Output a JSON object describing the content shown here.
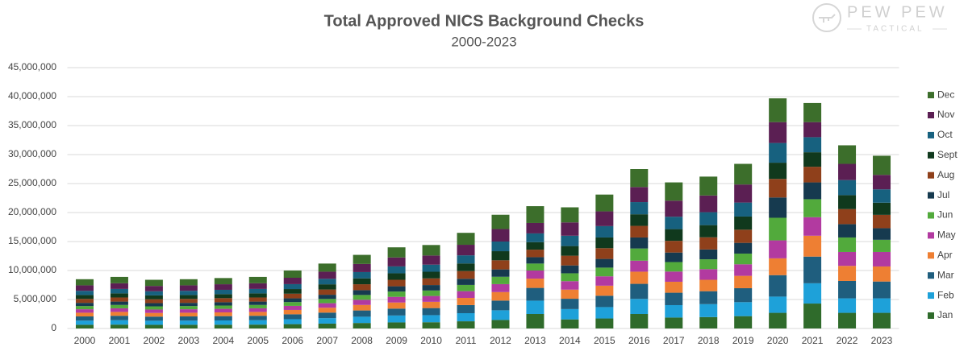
{
  "chart_data": {
    "type": "stacked_bar",
    "title": "Total Approved NICS Background Checks",
    "subtitle": "2000-2023",
    "categories": [
      "2000",
      "2001",
      "2002",
      "2003",
      "2004",
      "2005",
      "2006",
      "2007",
      "2008",
      "2009",
      "2010",
      "2011",
      "2012",
      "2013",
      "2014",
      "2015",
      "2016",
      "2017",
      "2018",
      "2019",
      "2020",
      "2021",
      "2022",
      "2023"
    ],
    "series": [
      {
        "name": "Jan",
        "color": "#2f6b2b",
        "values": [
          640000,
          670000,
          630000,
          640000,
          650000,
          670000,
          750000,
          840000,
          950000,
          1050000,
          1080000,
          1240000,
          1470000,
          2500000,
          1570000,
          1730000,
          2500000,
          1890000,
          1970000,
          2130000,
          2700000,
          4300000,
          2700000,
          2700000
        ]
      },
      {
        "name": "Feb",
        "color": "#1ea1d9",
        "values": [
          720000,
          760000,
          710000,
          720000,
          740000,
          760000,
          850000,
          950000,
          1080000,
          1190000,
          1220000,
          1400000,
          1670000,
          2300000,
          1780000,
          1960000,
          2600000,
          2140000,
          2230000,
          2410000,
          2800000,
          3500000,
          2500000,
          2500000
        ]
      },
      {
        "name": "Mar",
        "color": "#1f5e7e",
        "values": [
          720000,
          760000,
          710000,
          720000,
          740000,
          760000,
          850000,
          950000,
          1080000,
          1190000,
          1220000,
          1400000,
          1670000,
          2200000,
          1780000,
          1960000,
          2600000,
          2140000,
          2230000,
          2410000,
          3700000,
          4600000,
          3000000,
          2900000
        ]
      },
      {
        "name": "Apr",
        "color": "#ee7f33",
        "values": [
          640000,
          670000,
          630000,
          640000,
          650000,
          670000,
          750000,
          840000,
          950000,
          1050000,
          1080000,
          1240000,
          1470000,
          1600000,
          1570000,
          1730000,
          2100000,
          1890000,
          1970000,
          2130000,
          2900000,
          3600000,
          2600000,
          2600000
        ]
      },
      {
        "name": "May",
        "color": "#b23aa0",
        "values": [
          600000,
          620000,
          590000,
          600000,
          610000,
          620000,
          700000,
          780000,
          890000,
          980000,
          1010000,
          1160000,
          1370000,
          1400000,
          1460000,
          1620000,
          1900000,
          1760000,
          1830000,
          1990000,
          3100000,
          3200000,
          2400000,
          2500000
        ]
      },
      {
        "name": "Jun",
        "color": "#52aa3c",
        "values": [
          550000,
          580000,
          550000,
          550000,
          570000,
          580000,
          650000,
          730000,
          830000,
          910000,
          940000,
          1070000,
          1270000,
          1200000,
          1360000,
          1500000,
          2100000,
          1640000,
          1700000,
          1850000,
          3900000,
          3100000,
          2500000,
          2100000
        ]
      },
      {
        "name": "Jul",
        "color": "#163a4f",
        "values": [
          550000,
          580000,
          550000,
          550000,
          570000,
          580000,
          650000,
          730000,
          830000,
          910000,
          940000,
          1070000,
          1270000,
          1100000,
          1360000,
          1500000,
          1900000,
          1640000,
          1700000,
          1850000,
          3500000,
          2900000,
          2300000,
          2000000
        ]
      },
      {
        "name": "Aug",
        "color": "#8f401b",
        "values": [
          680000,
          710000,
          670000,
          680000,
          700000,
          710000,
          800000,
          900000,
          1020000,
          1120000,
          1150000,
          1320000,
          1570000,
          1300000,
          1670000,
          1850000,
          2000000,
          2020000,
          2100000,
          2270000,
          3200000,
          2700000,
          2600000,
          2300000
        ]
      },
      {
        "name": "Sept",
        "color": "#10391d",
        "values": [
          680000,
          710000,
          670000,
          680000,
          700000,
          710000,
          800000,
          900000,
          1020000,
          1120000,
          1150000,
          1320000,
          1570000,
          1300000,
          1670000,
          1850000,
          2000000,
          2020000,
          2100000,
          2270000,
          2800000,
          2500000,
          2400000,
          2100000
        ]
      },
      {
        "name": "Oct",
        "color": "#17617f",
        "values": [
          720000,
          760000,
          710000,
          720000,
          740000,
          760000,
          850000,
          950000,
          1080000,
          1190000,
          1220000,
          1400000,
          1670000,
          1500000,
          1780000,
          1960000,
          2100000,
          2140000,
          2230000,
          2410000,
          3400000,
          2600000,
          2600000,
          2300000
        ]
      },
      {
        "name": "Nov",
        "color": "#5b1f53",
        "values": [
          940000,
          980000,
          920000,
          940000,
          960000,
          980000,
          1100000,
          1230000,
          1400000,
          1540000,
          1580000,
          1820000,
          2160000,
          1800000,
          2300000,
          2540000,
          2600000,
          2770000,
          2880000,
          3120000,
          3600000,
          2600000,
          2800000,
          2500000
        ]
      },
      {
        "name": "Dec",
        "color": "#3c6e2b",
        "values": [
          1060000,
          1100000,
          1060000,
          1060000,
          1070000,
          1100000,
          1250000,
          1400000,
          1570000,
          1750000,
          1810000,
          2060000,
          2460000,
          2900000,
          2600000,
          2900000,
          3100000,
          3150000,
          3260000,
          3560000,
          4100000,
          3300000,
          3200000,
          3300000
        ]
      }
    ],
    "ylim": [
      0,
      45000000
    ],
    "yticks": [
      0,
      {
        "value": 5000000,
        "label": "5,000,000"
      },
      {
        "value": 10000000,
        "label": "10,000,000"
      },
      {
        "value": 15000000,
        "label": "15,000,000"
      },
      {
        "value": 20000000,
        "label": "20,000,000"
      },
      {
        "value": 25000000,
        "label": "25,000,000"
      },
      {
        "value": 30000000,
        "label": "30,000,000"
      },
      {
        "value": 35000000,
        "label": "35,000,000"
      },
      {
        "value": 40000000,
        "label": "40,000,000"
      },
      {
        "value": 45000000,
        "label": "45,000,000"
      }
    ],
    "grid": true,
    "legend": "right"
  },
  "logo": {
    "name": "PEW PEW",
    "tagline": "TACTICAL"
  }
}
